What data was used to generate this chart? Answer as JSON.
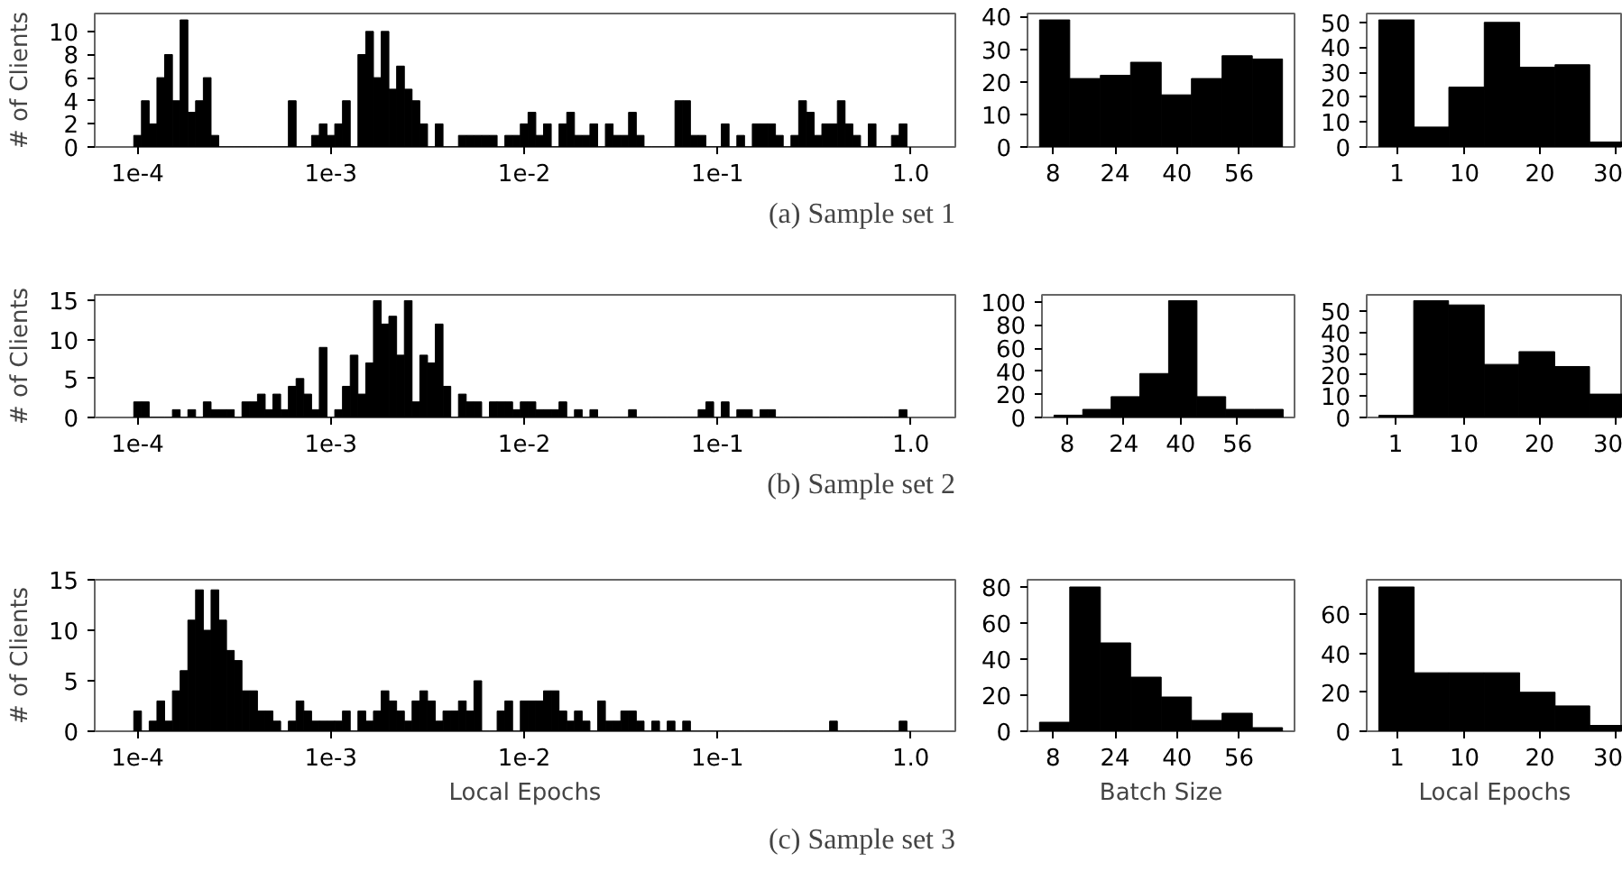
{
  "chart_data": [
    {
      "type": "histogram",
      "ylabel": "# of Clients",
      "color": "#000000",
      "log": "x",
      "annotations": [
        "(a) Sample set 1"
      ],
      "bins": [
        9.55e-05,
        0.0001047,
        0.0001148,
        0.0001259,
        0.000138,
        0.0001514,
        0.000166,
        0.000182,
        0.0001995,
        0.0002188,
        0.0002399,
        0.000263,
        0.0002884,
        0.0003162,
        0.0003467,
        0.0003802,
        0.0004169,
        0.0004571,
        0.0005012,
        0.0005495,
        0.0006026,
        0.0006607,
        0.0007244,
        0.0007943,
        0.000871,
        0.000955,
        0.001047,
        0.001148,
        0.001259,
        0.00138,
        0.001514,
        0.00166,
        0.00182,
        0.001995,
        0.002188,
        0.002399,
        0.00263,
        0.002884,
        0.003162,
        0.003467,
        0.003802,
        0.004169,
        0.004571,
        0.005012,
        0.005495,
        0.006026,
        0.006607,
        0.007244,
        0.007943,
        0.00871,
        0.00955,
        0.01047,
        0.01148,
        0.01259,
        0.0138,
        0.01514,
        0.0166,
        0.0182,
        0.01995,
        0.02188,
        0.02399,
        0.0263,
        0.02884,
        0.03162,
        0.03467,
        0.03802,
        0.04169,
        0.04571,
        0.05012,
        0.05495,
        0.06026,
        0.06607,
        0.07244,
        0.07943,
        0.0871,
        0.0955,
        0.1047,
        0.1148,
        0.1259,
        0.138,
        0.1514,
        0.166,
        0.182,
        0.1995,
        0.2188,
        0.2399,
        0.263,
        0.2884,
        0.3162,
        0.3467,
        0.3802,
        0.4169,
        0.4571,
        0.5012,
        0.5495,
        0.6026,
        0.6607,
        0.7244,
        0.7943,
        0.871,
        0.955
      ],
      "values": [
        1,
        4,
        2,
        6,
        8,
        4,
        11,
        3,
        4,
        6,
        1,
        0,
        0,
        0,
        0,
        0,
        0,
        0,
        0,
        0,
        4,
        0,
        0,
        1,
        2,
        1,
        2,
        4,
        0,
        8,
        10,
        6,
        10,
        5,
        7,
        5,
        4,
        2,
        0,
        2,
        0,
        0,
        1,
        1,
        1,
        1,
        1,
        0,
        1,
        1,
        2,
        3,
        1,
        2,
        0,
        2,
        3,
        1,
        1,
        2,
        0,
        2,
        1,
        1,
        3,
        1,
        0,
        0,
        0,
        0,
        4,
        4,
        1,
        1,
        0,
        0,
        2,
        0,
        1,
        0,
        2,
        2,
        2,
        1,
        0,
        1,
        4,
        3,
        1,
        2,
        2,
        4,
        2,
        1,
        0,
        2,
        0,
        0,
        1,
        2
      ],
      "xlim": [
        6e-05,
        1.7
      ],
      "xticks": [
        {
          "value": 0.0001,
          "label": "1e-4"
        },
        {
          "value": 0.001,
          "label": "1e-3"
        },
        {
          "value": 0.01,
          "label": "1e-2"
        },
        {
          "value": 0.1,
          "label": "1e-1"
        },
        {
          "value": 1,
          "label": "1.0"
        }
      ],
      "ylim": [
        0,
        11.55
      ],
      "yticks": [
        0,
        2,
        4,
        6,
        8,
        10
      ]
    },
    {
      "type": "histogram",
      "color": "#000000",
      "bins": [
        4.5,
        12.3,
        20.2,
        28.0,
        35.9,
        43.7,
        51.6,
        59.4,
        67.2
      ],
      "values": [
        39,
        21,
        22,
        26,
        16,
        21,
        28,
        27
      ],
      "xlim": [
        1.4,
        70.3
      ],
      "xticks": [
        8,
        24,
        40,
        56
      ],
      "ylim": [
        0,
        40.95
      ],
      "yticks": [
        0,
        10,
        20,
        30,
        40
      ]
    },
    {
      "type": "histogram",
      "color": "#000000",
      "bins": [
        -1.4,
        3.3,
        7.9,
        12.6,
        17.3,
        22.0,
        26.6,
        31.0
      ],
      "values": [
        51,
        8,
        24,
        50,
        32,
        33,
        2
      ],
      "xlim": [
        -3.0,
        31.0
      ],
      "xticks": [
        1,
        10,
        20,
        30
      ],
      "ylim": [
        0,
        53.55
      ],
      "yticks": [
        0,
        10,
        20,
        30,
        40,
        50
      ]
    },
    {
      "type": "histogram",
      "ylabel": "# of Clients",
      "color": "#000000",
      "log": "x",
      "annotations": [
        "(b) Sample set 2"
      ],
      "bins": [
        9.55e-05,
        0.0001047,
        0.0001148,
        0.0001259,
        0.000138,
        0.0001514,
        0.000166,
        0.000182,
        0.0001995,
        0.0002188,
        0.0002399,
        0.000263,
        0.0002884,
        0.0003162,
        0.0003467,
        0.0003802,
        0.0004169,
        0.0004571,
        0.0005012,
        0.0005495,
        0.0006026,
        0.0006607,
        0.0007244,
        0.0007943,
        0.000871,
        0.000955,
        0.001047,
        0.001148,
        0.001259,
        0.00138,
        0.001514,
        0.00166,
        0.00182,
        0.001995,
        0.002188,
        0.002399,
        0.00263,
        0.002884,
        0.003162,
        0.003467,
        0.003802,
        0.004169,
        0.004571,
        0.005012,
        0.005495,
        0.006026,
        0.006607,
        0.007244,
        0.007943,
        0.00871,
        0.00955,
        0.01047,
        0.01148,
        0.01259,
        0.0138,
        0.01514,
        0.0166,
        0.0182,
        0.01995,
        0.02188,
        0.02399,
        0.0263,
        0.02884,
        0.03162,
        0.03467,
        0.03802,
        0.04169,
        0.04571,
        0.05012,
        0.05495,
        0.06026,
        0.06607,
        0.07244,
        0.07943,
        0.0871,
        0.0955,
        0.1047,
        0.1148,
        0.1259,
        0.138,
        0.1514,
        0.166,
        0.182,
        0.1995,
        0.2188,
        0.2399,
        0.263,
        0.2884,
        0.3162,
        0.3467,
        0.3802,
        0.4169,
        0.4571,
        0.5012,
        0.5495,
        0.6026,
        0.6607,
        0.7244,
        0.7943,
        0.871,
        0.955
      ],
      "values": [
        2,
        2,
        0,
        0,
        0,
        1,
        0,
        1,
        0,
        2,
        1,
        1,
        1,
        0,
        2,
        2,
        3,
        1,
        3,
        1,
        4,
        5,
        3,
        1,
        9,
        0,
        1,
        4,
        8,
        3,
        7,
        15,
        12,
        13,
        8,
        15,
        2,
        8,
        7,
        12,
        4,
        0,
        3,
        2,
        2,
        0,
        2,
        2,
        2,
        1,
        2,
        2,
        1,
        1,
        1,
        2,
        0,
        1,
        0,
        1,
        0,
        0,
        0,
        0,
        1,
        0,
        0,
        0,
        0,
        0,
        0,
        0,
        0,
        1,
        2,
        0,
        2,
        0,
        1,
        1,
        0,
        1,
        1,
        0,
        0,
        0,
        0,
        0,
        0,
        0,
        0,
        0,
        0,
        0,
        0,
        0,
        0,
        0,
        0,
        1
      ],
      "xlim": [
        6e-05,
        1.7
      ],
      "xticks": [
        {
          "value": 0.0001,
          "label": "1e-4"
        },
        {
          "value": 0.001,
          "label": "1e-3"
        },
        {
          "value": 0.01,
          "label": "1e-2"
        },
        {
          "value": 0.1,
          "label": "1e-1"
        },
        {
          "value": 1,
          "label": "1.0"
        }
      ],
      "ylim": [
        0,
        15.75
      ],
      "yticks": [
        0,
        5,
        10,
        15
      ]
    },
    {
      "type": "histogram",
      "color": "#000000",
      "bins": [
        4.3,
        12.4,
        20.4,
        28.5,
        36.6,
        44.6,
        52.7,
        60.8,
        68.9
      ],
      "values": [
        2,
        7,
        18,
        38,
        101,
        18,
        7,
        7
      ],
      "xlim": [
        0.9,
        72.1
      ],
      "xticks": [
        8,
        24,
        40,
        56
      ],
      "ylim": [
        0,
        106.05
      ],
      "yticks": [
        0,
        20,
        40,
        60,
        80,
        100
      ]
    },
    {
      "type": "histogram",
      "color": "#000000",
      "bins": [
        -1.2,
        3.4,
        8.0,
        12.7,
        17.3,
        22.0,
        26.6,
        31.0
      ],
      "values": [
        1,
        55,
        53,
        25,
        31,
        24,
        11
      ],
      "xlim": [
        -2.8,
        31.0
      ],
      "xticks": [
        1,
        10,
        20,
        30
      ],
      "ylim": [
        0,
        57.75
      ],
      "yticks": [
        0,
        10,
        20,
        30,
        40,
        50
      ]
    },
    {
      "type": "histogram",
      "ylabel": "# of Clients",
      "xlabel": "Local Epochs",
      "color": "#000000",
      "log": "x",
      "annotations": [
        "(c) Sample set 3"
      ],
      "bins": [
        9.55e-05,
        0.0001047,
        0.0001148,
        0.0001259,
        0.000138,
        0.0001514,
        0.000166,
        0.000182,
        0.0001995,
        0.0002188,
        0.0002399,
        0.000263,
        0.0002884,
        0.0003162,
        0.0003467,
        0.0003802,
        0.0004169,
        0.0004571,
        0.0005012,
        0.0005495,
        0.0006026,
        0.0006607,
        0.0007244,
        0.0007943,
        0.000871,
        0.000955,
        0.001047,
        0.001148,
        0.001259,
        0.00138,
        0.001514,
        0.00166,
        0.00182,
        0.001995,
        0.002188,
        0.002399,
        0.00263,
        0.002884,
        0.003162,
        0.003467,
        0.003802,
        0.004169,
        0.004571,
        0.005012,
        0.005495,
        0.006026,
        0.006607,
        0.007244,
        0.007943,
        0.00871,
        0.00955,
        0.01047,
        0.01148,
        0.01259,
        0.0138,
        0.01514,
        0.0166,
        0.0182,
        0.01995,
        0.02188,
        0.02399,
        0.0263,
        0.02884,
        0.03162,
        0.03467,
        0.03802,
        0.04169,
        0.04571,
        0.05012,
        0.05495,
        0.06026,
        0.06607,
        0.07244,
        0.07943,
        0.0871,
        0.0955,
        0.1047,
        0.1148,
        0.1259,
        0.138,
        0.1514,
        0.166,
        0.182,
        0.1995,
        0.2188,
        0.2399,
        0.263,
        0.2884,
        0.3162,
        0.3467,
        0.3802,
        0.4169,
        0.4571,
        0.5012,
        0.5495,
        0.6026,
        0.6607,
        0.7244,
        0.7943,
        0.871,
        0.955
      ],
      "values": [
        2,
        0,
        1,
        3,
        1,
        4,
        6,
        11,
        14,
        10,
        14,
        11,
        8,
        7,
        4,
        4,
        2,
        2,
        1,
        0,
        1,
        3,
        2,
        1,
        1,
        1,
        1,
        2,
        0,
        2,
        1,
        2,
        4,
        3,
        2,
        1,
        3,
        4,
        3,
        1,
        2,
        2,
        3,
        2,
        5,
        0,
        0,
        2,
        3,
        0,
        3,
        3,
        3,
        4,
        4,
        2,
        1,
        2,
        1,
        0,
        3,
        1,
        1,
        2,
        2,
        1,
        0,
        1,
        0,
        1,
        0,
        1,
        0,
        0,
        0,
        0,
        0,
        0,
        0,
        0,
        0,
        0,
        0,
        0,
        0,
        0,
        0,
        0,
        0,
        0,
        1,
        0,
        0,
        0,
        0,
        0,
        0,
        0,
        0,
        1
      ],
      "xlim": [
        6e-05,
        1.7
      ],
      "xticks": [
        {
          "value": 0.0001,
          "label": "1e-4"
        },
        {
          "value": 0.001,
          "label": "1e-3"
        },
        {
          "value": 0.01,
          "label": "1e-2"
        },
        {
          "value": 0.1,
          "label": "1e-1"
        },
        {
          "value": 1,
          "label": "1.0"
        }
      ],
      "ylim": [
        0,
        15
      ],
      "yticks": [
        0,
        5,
        10,
        15
      ]
    },
    {
      "type": "histogram",
      "xlabel": "Batch Size",
      "color": "#000000",
      "bins": [
        4.5,
        12.3,
        20.2,
        28.0,
        35.9,
        43.7,
        51.6,
        59.4,
        67.2
      ],
      "values": [
        5,
        80,
        49,
        30,
        19,
        6,
        10,
        2
      ],
      "xlim": [
        1.4,
        70.3
      ],
      "xticks": [
        8,
        24,
        40,
        56
      ],
      "ylim": [
        0,
        84
      ],
      "yticks": [
        0,
        20,
        40,
        60,
        80
      ]
    },
    {
      "type": "histogram",
      "xlabel": "Local Epochs",
      "color": "#000000",
      "bins": [
        -1.4,
        3.3,
        7.9,
        12.6,
        17.3,
        22.0,
        26.6,
        31.0
      ],
      "values": [
        74,
        30,
        30,
        30,
        20,
        13,
        3
      ],
      "xlim": [
        -3.0,
        31.0
      ],
      "xticks": [
        1,
        10,
        20,
        30
      ],
      "ylim": [
        0,
        77.7
      ],
      "yticks": [
        0,
        20,
        40,
        60
      ]
    }
  ]
}
